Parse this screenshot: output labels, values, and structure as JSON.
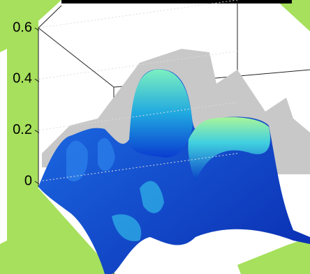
{
  "chart_data": {
    "type": "surface",
    "zlim": [
      0,
      0.6
    ],
    "zticks": [
      0,
      0.2,
      0.4,
      0.6
    ]
  }
}
